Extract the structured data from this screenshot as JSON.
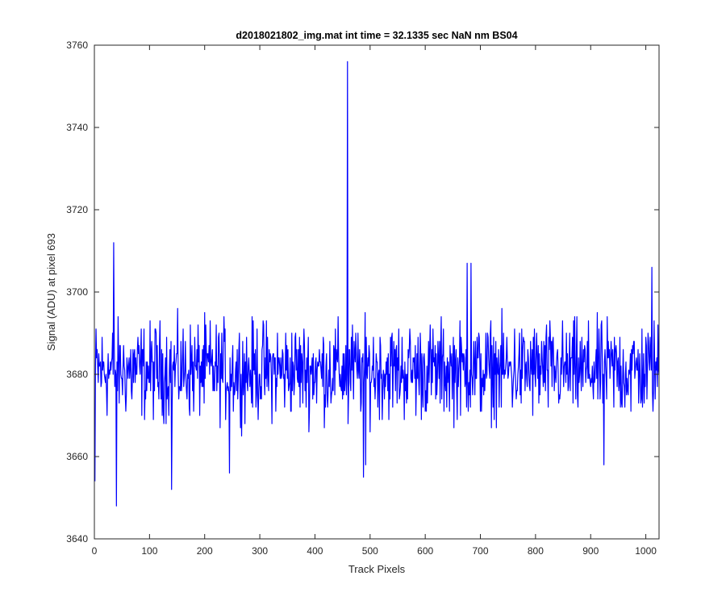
{
  "chart_data": {
    "type": "line",
    "title": "d2018021802_img.mat int time = 32.1335 sec  NaN nm BS04",
    "xlabel": "Track Pixels",
    "ylabel": "Signal (ADU) at pixel 693",
    "xlim": [
      0,
      1024
    ],
    "ylim": [
      3640,
      3760
    ],
    "xticks": [
      0,
      100,
      200,
      300,
      400,
      500,
      600,
      700,
      800,
      900,
      1000
    ],
    "yticks": [
      3640,
      3660,
      3680,
      3700,
      3720,
      3740,
      3760
    ],
    "grid": false,
    "box": true,
    "line_color": "#0000ff",
    "baseline": 3681,
    "noise_amplitude": 9,
    "x_start": 1,
    "n_points": 1024,
    "notable_points": [
      {
        "x": 1,
        "y": 3654
      },
      {
        "x": 35,
        "y": 3712
      },
      {
        "x": 40,
        "y": 3648
      },
      {
        "x": 140,
        "y": 3652
      },
      {
        "x": 245,
        "y": 3656
      },
      {
        "x": 459,
        "y": 3756
      },
      {
        "x": 460,
        "y": 3668
      },
      {
        "x": 488,
        "y": 3655
      },
      {
        "x": 492,
        "y": 3658
      },
      {
        "x": 676,
        "y": 3707
      },
      {
        "x": 683,
        "y": 3707
      },
      {
        "x": 924,
        "y": 3658
      },
      {
        "x": 1011,
        "y": 3706
      }
    ]
  }
}
